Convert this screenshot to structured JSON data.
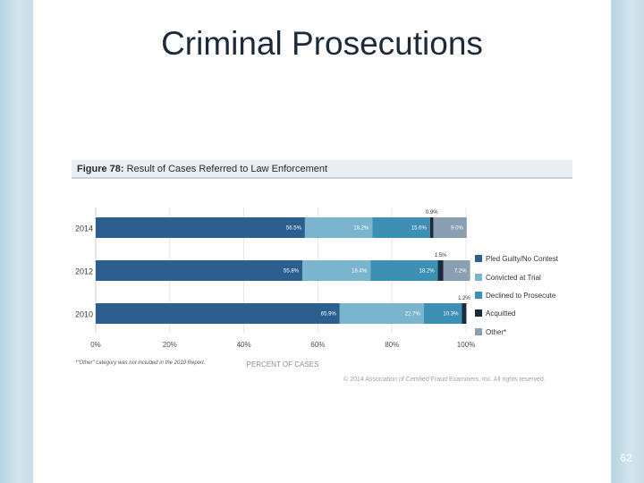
{
  "slide": {
    "title": "Criminal Prosecutions",
    "page_number": "62"
  },
  "figure": {
    "label": "Figure 78:",
    "title": "Result of Cases Referred to Law Enforcement",
    "footnote": "*\"Other\" category was not included in the 2010 Report.",
    "copyright": "© 2014 Association of Certified Fraud Examiners, Inc. All rights reserved."
  },
  "colors": {
    "pled": "#2a5f8f",
    "convicted": "#7bb4cd",
    "declined": "#3d8fb3",
    "acquitted": "#1b2b3d",
    "other": "#8aa0b2"
  },
  "chart_data": {
    "type": "bar",
    "orientation": "horizontal",
    "stacked": true,
    "categories": [
      "2014",
      "2012",
      "2010"
    ],
    "series": [
      {
        "name": "Pled Guilty/No Contest",
        "values": [
          56.5,
          55.8,
          65.9
        ],
        "labels": [
          "56.5%",
          "55.8%",
          "65.9%"
        ],
        "color": "#2a5f8f"
      },
      {
        "name": "Convicted at Trial",
        "values": [
          18.2,
          18.4,
          22.7
        ],
        "labels": [
          "18.2%",
          "18.4%",
          "22.7%"
        ],
        "color": "#7bb4cd"
      },
      {
        "name": "Declined to Prosecute",
        "values": [
          15.6,
          18.2,
          10.3
        ],
        "labels": [
          "15.6%",
          "18.2%",
          "10.3%"
        ],
        "color": "#3d8fb3"
      },
      {
        "name": "Acquitted",
        "values": [
          0.9,
          1.5,
          1.2
        ],
        "labels": [
          "0.9%",
          "1.5%",
          "1.2%"
        ],
        "color": "#1b2b3d"
      },
      {
        "name": "Other*",
        "values": [
          9.0,
          7.2,
          0
        ],
        "labels": [
          "9.0%",
          "7.2%",
          ""
        ],
        "color": "#8aa0b2"
      }
    ],
    "xlabel": "PERCENT OF CASES",
    "xlim": [
      0,
      100
    ],
    "xticks": [
      0,
      20,
      40,
      60,
      80,
      100
    ],
    "xtick_labels": [
      "0%",
      "20%",
      "40%",
      "60%",
      "80%",
      "100%"
    ],
    "grid": true,
    "legend": "right"
  }
}
